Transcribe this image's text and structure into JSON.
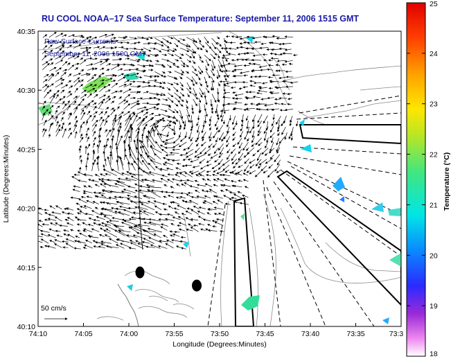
{
  "title": "RU COOL  NOAA–17  Sea Surface Temperature:  September 11, 2006 1515 GMT",
  "legend": {
    "line1": "Raw Surface Currents",
    "line2": "September 11, 2006 1500 GMT"
  },
  "scale_label": "50 cm/s",
  "x_axis": {
    "label": "Longitude (Degrees:Minutes)",
    "ticks": [
      "74:10",
      "74:05",
      "74:00",
      "73:55",
      "73:50",
      "73:45",
      "73:40",
      "73:35",
      "73:3"
    ]
  },
  "y_axis": {
    "label": "Latitude (Degrees:Minutes)",
    "ticks": [
      "40:35",
      "40:30",
      "40:25",
      "40:20",
      "40:15",
      "40:10"
    ]
  },
  "colorbar": {
    "label": "Temperature (°C)",
    "ticks": [
      "25",
      "24",
      "23",
      "22",
      "21",
      "20",
      "19",
      "18"
    ],
    "min": 18,
    "max": 25
  },
  "colors": {
    "title": "#1a1aa6",
    "axes": "#000000",
    "contours": "#888888",
    "vectors": "#000000"
  },
  "icons": {
    "vector_arrow": "arrow-icon",
    "sst_patch": "sst-patch-icon"
  }
}
